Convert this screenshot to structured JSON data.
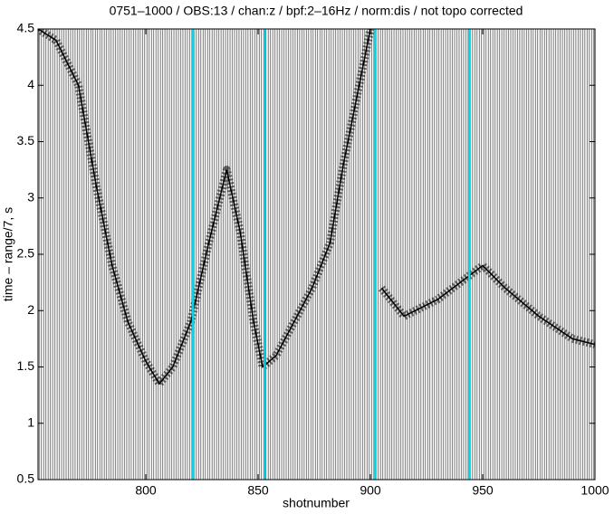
{
  "chart_data": {
    "type": "record-section",
    "title": "0751–1000 / OBS:13 / chan:z / bpf:2–16Hz / norm:dis / not topo corrected",
    "x_label": "shotnumber",
    "y_label": "time – range/7, s",
    "xlim": [
      752,
      1000
    ],
    "ylim": [
      0.5,
      4.5
    ],
    "xticks": [
      800,
      850,
      900,
      950,
      1000
    ],
    "yticks": [
      0.5,
      1,
      1.5,
      2,
      2.5,
      3,
      3.5,
      4,
      4.5
    ],
    "trace_color": "#000000",
    "first_arrival": {
      "color": "#000000",
      "x": [
        752,
        760,
        770,
        778,
        785,
        792,
        800,
        806,
        812,
        820,
        828,
        836,
        842,
        848,
        852,
        858,
        866,
        874,
        882,
        888,
        894,
        900,
        902,
        905,
        915,
        930,
        950,
        960,
        975,
        990,
        1000
      ],
      "y": [
        4.5,
        4.4,
        4.0,
        3.1,
        2.4,
        1.9,
        1.55,
        1.35,
        1.5,
        1.9,
        2.6,
        3.25,
        2.7,
        1.9,
        1.5,
        1.6,
        1.9,
        2.2,
        2.6,
        3.3,
        3.9,
        4.5,
        null,
        2.2,
        1.95,
        2.1,
        2.4,
        2.2,
        1.95,
        1.75,
        1.7
      ]
    },
    "highlighted_traces": {
      "color": "#00d8e8",
      "x": [
        821,
        853,
        902,
        944
      ]
    }
  }
}
